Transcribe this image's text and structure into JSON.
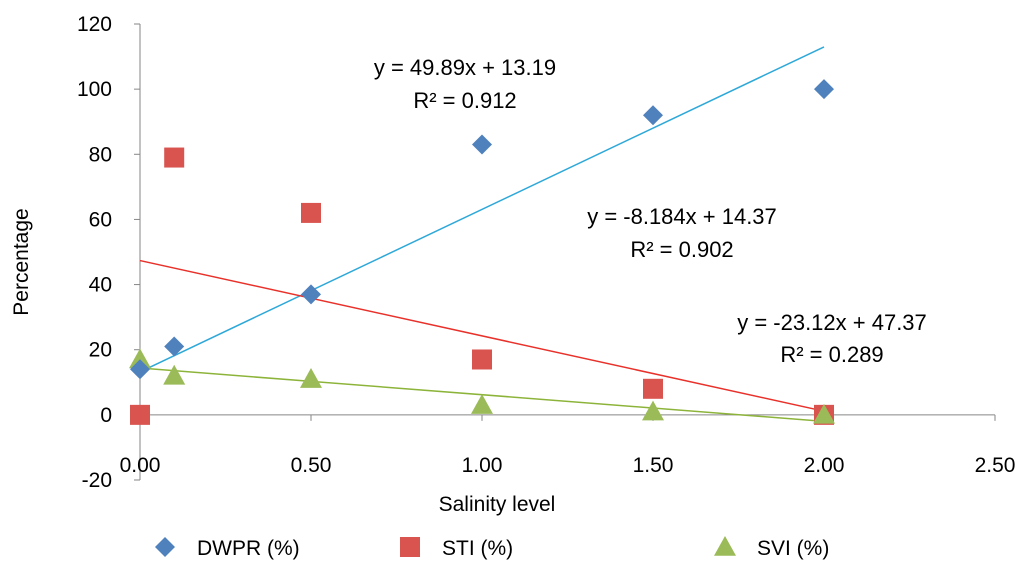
{
  "chart_data": {
    "type": "scatter",
    "xlabel": "Salinity level",
    "ylabel": "Percentage",
    "xlim": [
      0,
      2.5
    ],
    "ylim": [
      -20,
      120
    ],
    "x_ticks": [
      "0.00",
      "0.50",
      "1.00",
      "1.50",
      "2.00",
      "2.50"
    ],
    "y_ticks": [
      "-20",
      "0",
      "20",
      "40",
      "60",
      "80",
      "100",
      "120"
    ],
    "legend_position": "bottom",
    "grid": false,
    "series": [
      {
        "name": "DWPR (%)",
        "marker": "diamond",
        "color": "#4F81BD",
        "trend_color": "#2DA8D8",
        "x": [
          0,
          0.1,
          0.5,
          1.0,
          1.5,
          2.0
        ],
        "y": [
          14,
          21,
          37,
          83,
          92,
          100
        ],
        "trendline": {
          "slope": 49.89,
          "intercept": 13.19,
          "equation": "y = 49.89x + 13.19",
          "r2": "R² = 0.912"
        }
      },
      {
        "name": "STI (%)",
        "marker": "square",
        "color": "#D9534F",
        "trend_color": "#E8312A",
        "x": [
          0,
          0.1,
          0.5,
          1.0,
          1.5,
          2.0
        ],
        "y": [
          0,
          79,
          62,
          17,
          8,
          0
        ],
        "trendline": {
          "slope": -23.12,
          "intercept": 47.37,
          "equation": "y = -23.12x + 47.37",
          "r2": "R² = 0.289"
        }
      },
      {
        "name": "SVI (%)",
        "marker": "triangle",
        "color": "#9BBB59",
        "trend_color": "#8DB43A",
        "x": [
          0,
          0.1,
          0.5,
          1.0,
          1.5,
          2.0
        ],
        "y": [
          17,
          12,
          11,
          3,
          1,
          0
        ],
        "trendline": {
          "slope": -8.184,
          "intercept": 14.37,
          "equation": "y = -8.184x + 14.37",
          "r2": "R² = 0.902"
        }
      }
    ]
  }
}
